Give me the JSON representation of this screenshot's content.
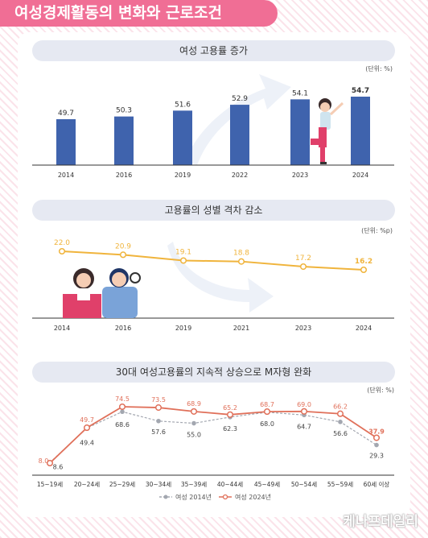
{
  "page_title": "여성경제활동의 변화와 근로조건",
  "watermark": "케나프데일리",
  "chart_data": [
    {
      "type": "bar",
      "title": "여성 고용률 증가",
      "unit": "(단위: %)",
      "categories": [
        "2014",
        "2016",
        "2019",
        "2022",
        "2023",
        "2024"
      ],
      "values": [
        49.7,
        50.3,
        51.6,
        52.9,
        54.1,
        54.7
      ],
      "value_labels": [
        "49.7",
        "50.3",
        "51.6",
        "52.9",
        "54.1",
        "54.7"
      ],
      "color": "#3f63ad"
    },
    {
      "type": "line",
      "title": "고용률의 성별 격차 감소",
      "unit": "(단위: %p)",
      "categories": [
        "2014",
        "2016",
        "2019",
        "2021",
        "2023",
        "2024"
      ],
      "values": [
        22.0,
        20.9,
        19.1,
        18.8,
        17.2,
        16.2
      ],
      "value_labels": [
        "22.0",
        "20.9",
        "19.1",
        "18.8",
        "17.2",
        "16.2"
      ],
      "color": "#f0b43c"
    },
    {
      "type": "line",
      "title": "30대 여성고용률의 지속적 상승으로 M자형 완화",
      "unit": "(단위: %)",
      "categories": [
        "15~19세",
        "20~24세",
        "25~29세",
        "30~34세",
        "35~39세",
        "40~44세",
        "45~49세",
        "50~54세",
        "55~59세",
        "60세 이상"
      ],
      "series": [
        {
          "name": "여성 2014년",
          "values": [
            8.6,
            49.4,
            68.6,
            57.6,
            55.0,
            62.3,
            68.0,
            64.7,
            56.6,
            29.3
          ],
          "value_labels": [
            "8.6",
            "49.4",
            "68.6",
            "57.6",
            "55.0",
            "62.3",
            "68.0",
            "64.7",
            "56.6",
            "29.3"
          ],
          "color": "#a3a7b0"
        },
        {
          "name": "여성 2024년",
          "values": [
            8.0,
            49.7,
            74.5,
            73.5,
            68.9,
            65.2,
            68.7,
            69.0,
            66.2,
            37.9
          ],
          "value_labels": [
            "8.0",
            "49.7",
            "74.5",
            "73.5",
            "68.9",
            "65.2",
            "68.7",
            "69.0",
            "66.2",
            "37.9"
          ],
          "color": "#e0705a"
        }
      ]
    }
  ]
}
